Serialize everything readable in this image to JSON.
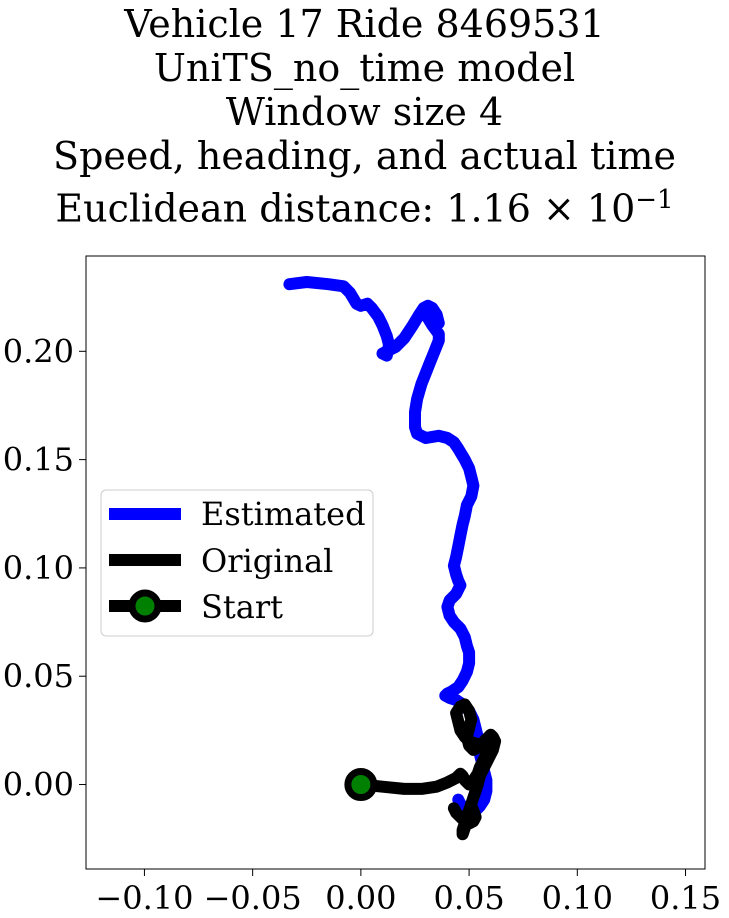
{
  "chart_data": {
    "type": "line",
    "title_lines": [
      "Vehicle 17 Ride 8469531",
      "UniTS_no_time model",
      "Window size 4",
      "Speed, heading, and actual time",
      "Euclidean distance: "
    ],
    "distance_mantissa": "1.16",
    "distance_times": "×",
    "distance_base": "10",
    "distance_exponent": "−1",
    "xlim": [
      -0.127,
      0.159
    ],
    "ylim": [
      -0.039,
      0.244
    ],
    "xticks": [
      -0.1,
      -0.05,
      0.0,
      0.05,
      0.1,
      0.15
    ],
    "xtick_labels": [
      "−0.10",
      "−0.05",
      "0.00",
      "0.05",
      "0.10",
      "0.15"
    ],
    "yticks": [
      0.0,
      0.05,
      0.1,
      0.15,
      0.2
    ],
    "ytick_labels": [
      "0.00",
      "0.05",
      "0.10",
      "0.15",
      "0.20"
    ],
    "legend_position": "center-left",
    "series": [
      {
        "name": "Estimated",
        "color": "#0000ff",
        "x": [
          -0.033,
          -0.025,
          -0.015,
          -0.008,
          -0.005,
          -0.002,
          0.0,
          0.003,
          0.005,
          0.008,
          0.01,
          0.012,
          0.013,
          0.012,
          0.01,
          0.012,
          0.016,
          0.02,
          0.024,
          0.027,
          0.029,
          0.031,
          0.033,
          0.035,
          0.036,
          0.033,
          0.03,
          0.033,
          0.036,
          0.036,
          0.034,
          0.032,
          0.03,
          0.028,
          0.026,
          0.025,
          0.025,
          0.026,
          0.03,
          0.036,
          0.04,
          0.043,
          0.045,
          0.048,
          0.05,
          0.051,
          0.052,
          0.051,
          0.049,
          0.048,
          0.047,
          0.046,
          0.045,
          0.044,
          0.043,
          0.044,
          0.045,
          0.046,
          0.044,
          0.041,
          0.04,
          0.041,
          0.043,
          0.046,
          0.048,
          0.049,
          0.05,
          0.05,
          0.049,
          0.047,
          0.045,
          0.042,
          0.04,
          0.039,
          0.041,
          0.044,
          0.047,
          0.05,
          0.052,
          0.053,
          0.054,
          0.054,
          0.055,
          0.056,
          0.057,
          0.058,
          0.058,
          0.057,
          0.055,
          0.053,
          0.052,
          0.05,
          0.048,
          0.046,
          0.045
        ],
        "y": [
          0.231,
          0.232,
          0.231,
          0.23,
          0.227,
          0.222,
          0.221,
          0.222,
          0.22,
          0.216,
          0.212,
          0.207,
          0.203,
          0.198,
          0.199,
          0.2,
          0.202,
          0.206,
          0.212,
          0.217,
          0.22,
          0.221,
          0.22,
          0.217,
          0.213,
          0.214,
          0.217,
          0.212,
          0.208,
          0.205,
          0.2,
          0.195,
          0.19,
          0.185,
          0.178,
          0.172,
          0.165,
          0.162,
          0.16,
          0.161,
          0.16,
          0.158,
          0.155,
          0.15,
          0.146,
          0.142,
          0.138,
          0.133,
          0.129,
          0.124,
          0.12,
          0.115,
          0.11,
          0.105,
          0.101,
          0.097,
          0.094,
          0.092,
          0.088,
          0.085,
          0.082,
          0.078,
          0.075,
          0.072,
          0.068,
          0.064,
          0.061,
          0.056,
          0.052,
          0.048,
          0.045,
          0.043,
          0.042,
          0.041,
          0.04,
          0.039,
          0.037,
          0.034,
          0.03,
          0.026,
          0.022,
          0.018,
          0.014,
          0.01,
          0.006,
          0.002,
          -0.003,
          -0.007,
          -0.01,
          -0.012,
          -0.013,
          -0.013,
          -0.011,
          -0.009,
          -0.007
        ]
      },
      {
        "name": "Original",
        "color": "#000000",
        "x": [
          0.0,
          0.01,
          0.02,
          0.028,
          0.035,
          0.04,
          0.044,
          0.046,
          0.047,
          0.048,
          0.05,
          0.052,
          0.054,
          0.055,
          0.056,
          0.057,
          0.058,
          0.058,
          0.056,
          0.053,
          0.05,
          0.048,
          0.046,
          0.045,
          0.044,
          0.046,
          0.048,
          0.05,
          0.051,
          0.05,
          0.049,
          0.05,
          0.052,
          0.054,
          0.056,
          0.058,
          0.059,
          0.06,
          0.061,
          0.062,
          0.061,
          0.059,
          0.057,
          0.055,
          0.054,
          0.053,
          0.052,
          0.051,
          0.05,
          0.049,
          0.048,
          0.047,
          0.047,
          0.048,
          0.049,
          0.05,
          0.051,
          0.052,
          0.053,
          0.052,
          0.05,
          0.048,
          0.046,
          0.044,
          0.043
        ],
        "y": [
          0.0,
          -0.001,
          -0.002,
          -0.002,
          -0.001,
          0.001,
          0.003,
          0.005,
          0.004,
          0.002,
          0.0,
          0.002,
          0.005,
          0.008,
          0.01,
          0.012,
          0.014,
          0.016,
          0.018,
          0.019,
          0.02,
          0.022,
          0.025,
          0.029,
          0.033,
          0.036,
          0.037,
          0.034,
          0.03,
          0.026,
          0.022,
          0.018,
          0.016,
          0.017,
          0.019,
          0.021,
          0.022,
          0.023,
          0.022,
          0.02,
          0.016,
          0.012,
          0.008,
          0.004,
          0.0,
          -0.003,
          -0.006,
          -0.009,
          -0.012,
          -0.015,
          -0.018,
          -0.021,
          -0.023,
          -0.02,
          -0.016,
          -0.012,
          -0.01,
          -0.012,
          -0.015,
          -0.017,
          -0.018,
          -0.017,
          -0.015,
          -0.013,
          -0.011
        ]
      }
    ],
    "start_marker": {
      "name": "Start",
      "x": 0.0,
      "y": 0.0,
      "edge_color": "#000000",
      "face_color": "#008000"
    }
  }
}
